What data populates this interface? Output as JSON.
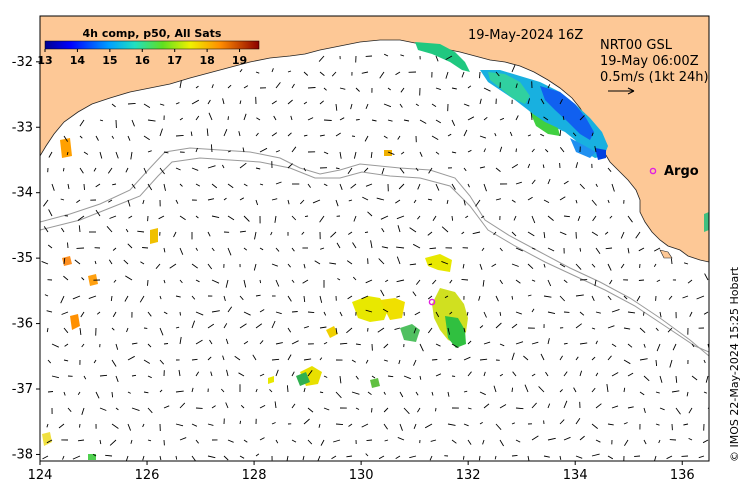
{
  "map": {
    "header_date": "19-May-2024 16Z",
    "colorbar_title": "4h comp, p50, All Sats",
    "colorbar_ticks": [
      "13",
      "14",
      "15",
      "16",
      "17",
      "18",
      "19"
    ],
    "colorbar_range": [
      13,
      19.6
    ],
    "info_line1": "NRT00 GSL",
    "info_line2": "19-May 06:00Z",
    "info_line3": "0.5m/s (1kt 24h)",
    "argo_label": "Argo",
    "credit": "© IMOS 22-May-2024 15:25 Hobart",
    "x_ticks": [
      "124",
      "126",
      "128",
      "130",
      "132",
      "134",
      "136"
    ],
    "y_ticks": [
      "-32",
      "-33",
      "-34",
      "-35",
      "-36",
      "-37",
      "-38"
    ],
    "lon_range": [
      124,
      136.5
    ],
    "lat_range": [
      -38.1,
      -31.3
    ],
    "colors": {
      "land": "#fdc896",
      "ocean": "#ffffff",
      "bathymetry": "#9a9a9a",
      "argo": "#e020e0"
    }
  }
}
